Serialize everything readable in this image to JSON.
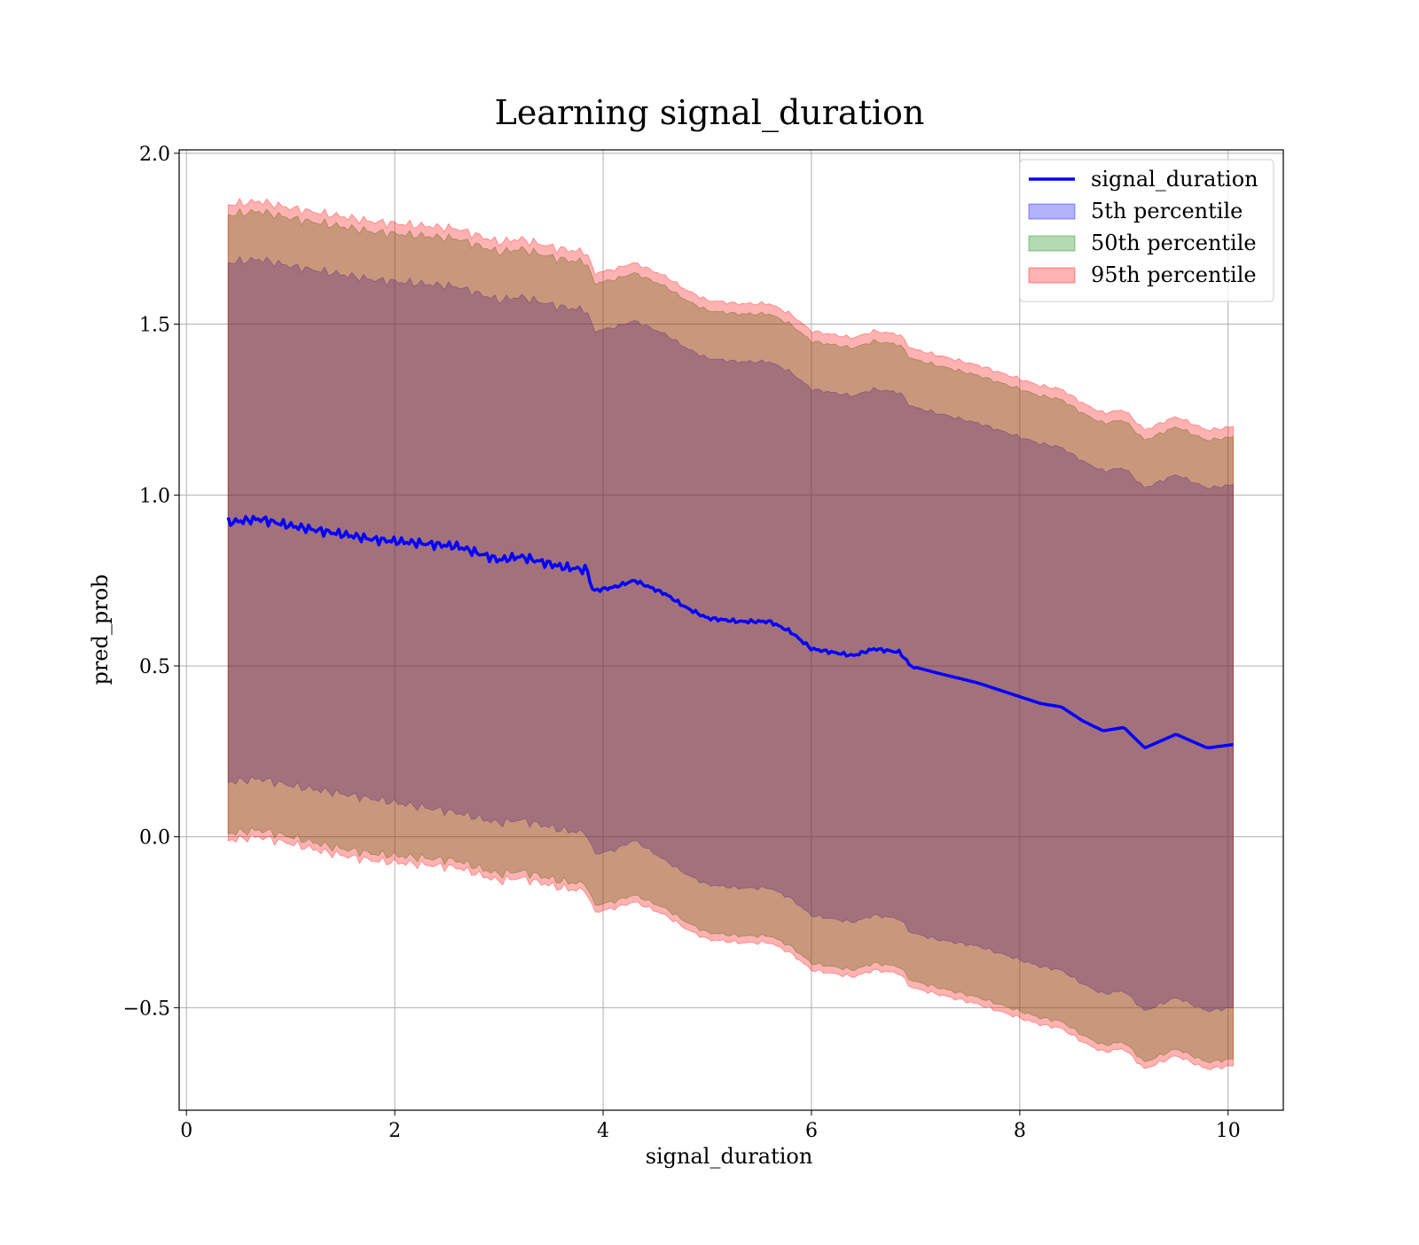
{
  "chart_data": {
    "type": "area",
    "title": "Learning signal_duration",
    "xlabel": "signal_duration",
    "ylabel": "pred_prob",
    "xlim": [
      -0.07,
      10.53
    ],
    "ylim": [
      -0.8,
      2.01
    ],
    "xticks": [
      0,
      2,
      4,
      6,
      8,
      10
    ],
    "xtick_labels": [
      "0",
      "2",
      "4",
      "6",
      "8",
      "10"
    ],
    "yticks": [
      -0.5,
      0.0,
      0.5,
      1.0,
      1.5,
      2.0
    ],
    "ytick_labels": [
      "−0.5",
      "0.0",
      "0.5",
      "1.0",
      "1.5",
      "2.0"
    ],
    "grid": true,
    "legend_position": "top-right",
    "x": [
      0.4,
      0.7,
      1.0,
      1.4,
      1.8,
      2.2,
      2.6,
      3.0,
      3.2,
      3.6,
      3.85,
      3.9,
      4.1,
      4.3,
      4.6,
      4.8,
      5.0,
      5.3,
      5.6,
      5.8,
      6.0,
      6.2,
      6.4,
      6.6,
      6.85,
      6.95,
      7.2,
      7.6,
      7.8,
      8.0,
      8.2,
      8.4,
      8.6,
      8.8,
      9.0,
      9.2,
      9.5,
      9.8,
      10.05
    ],
    "series": [
      {
        "name": "signal_duration",
        "type": "line",
        "color": "#0000ff",
        "values": [
          0.92,
          0.93,
          0.91,
          0.89,
          0.87,
          0.86,
          0.85,
          0.81,
          0.82,
          0.79,
          0.78,
          0.72,
          0.73,
          0.75,
          0.71,
          0.67,
          0.64,
          0.63,
          0.63,
          0.6,
          0.55,
          0.54,
          0.53,
          0.55,
          0.54,
          0.5,
          0.48,
          0.45,
          0.43,
          0.41,
          0.39,
          0.38,
          0.34,
          0.31,
          0.32,
          0.26,
          0.3,
          0.26,
          0.27
        ]
      },
      {
        "name": "5th percentile",
        "type": "band",
        "color": "#0000ff",
        "opacity": 0.3,
        "lower": [
          0.16,
          0.17,
          0.15,
          0.13,
          0.11,
          0.09,
          0.07,
          0.04,
          0.05,
          0.02,
          0.01,
          -0.05,
          -0.04,
          -0.01,
          -0.07,
          -0.11,
          -0.14,
          -0.15,
          -0.15,
          -0.18,
          -0.23,
          -0.24,
          -0.25,
          -0.23,
          -0.24,
          -0.28,
          -0.3,
          -0.32,
          -0.34,
          -0.36,
          -0.38,
          -0.39,
          -0.43,
          -0.46,
          -0.45,
          -0.51,
          -0.47,
          -0.51,
          -0.5
        ],
        "upper": [
          1.68,
          1.69,
          1.67,
          1.65,
          1.63,
          1.62,
          1.61,
          1.57,
          1.58,
          1.55,
          1.54,
          1.48,
          1.49,
          1.51,
          1.47,
          1.43,
          1.4,
          1.39,
          1.39,
          1.36,
          1.31,
          1.3,
          1.29,
          1.31,
          1.3,
          1.26,
          1.24,
          1.21,
          1.19,
          1.17,
          1.15,
          1.14,
          1.1,
          1.07,
          1.08,
          1.02,
          1.06,
          1.02,
          1.03
        ]
      },
      {
        "name": "50th percentile",
        "type": "band",
        "color": "#008000",
        "opacity": 0.3,
        "lower": [
          0.01,
          0.02,
          0.0,
          -0.03,
          -0.05,
          -0.06,
          -0.07,
          -0.11,
          -0.1,
          -0.13,
          -0.14,
          -0.2,
          -0.19,
          -0.17,
          -0.21,
          -0.25,
          -0.28,
          -0.29,
          -0.29,
          -0.32,
          -0.37,
          -0.38,
          -0.39,
          -0.37,
          -0.38,
          -0.42,
          -0.44,
          -0.47,
          -0.49,
          -0.51,
          -0.53,
          -0.54,
          -0.58,
          -0.61,
          -0.6,
          -0.66,
          -0.62,
          -0.66,
          -0.65
        ],
        "upper": [
          1.82,
          1.83,
          1.81,
          1.79,
          1.77,
          1.76,
          1.75,
          1.71,
          1.72,
          1.69,
          1.68,
          1.62,
          1.63,
          1.65,
          1.61,
          1.57,
          1.54,
          1.53,
          1.53,
          1.5,
          1.45,
          1.44,
          1.43,
          1.45,
          1.44,
          1.4,
          1.38,
          1.35,
          1.33,
          1.31,
          1.29,
          1.28,
          1.24,
          1.21,
          1.22,
          1.16,
          1.2,
          1.16,
          1.17
        ]
      },
      {
        "name": "95th percentile",
        "type": "band",
        "color": "#ff0000",
        "opacity": 0.3,
        "lower": [
          -0.01,
          0.0,
          -0.02,
          -0.05,
          -0.07,
          -0.08,
          -0.09,
          -0.13,
          -0.12,
          -0.15,
          -0.16,
          -0.22,
          -0.21,
          -0.19,
          -0.23,
          -0.27,
          -0.3,
          -0.31,
          -0.31,
          -0.34,
          -0.39,
          -0.4,
          -0.41,
          -0.39,
          -0.4,
          -0.44,
          -0.46,
          -0.49,
          -0.51,
          -0.53,
          -0.55,
          -0.56,
          -0.6,
          -0.63,
          -0.62,
          -0.68,
          -0.64,
          -0.68,
          -0.67
        ],
        "upper": [
          1.85,
          1.86,
          1.84,
          1.82,
          1.8,
          1.79,
          1.78,
          1.74,
          1.75,
          1.72,
          1.71,
          1.65,
          1.66,
          1.68,
          1.64,
          1.6,
          1.57,
          1.56,
          1.56,
          1.53,
          1.48,
          1.47,
          1.46,
          1.48,
          1.47,
          1.43,
          1.41,
          1.38,
          1.36,
          1.34,
          1.32,
          1.31,
          1.27,
          1.24,
          1.25,
          1.19,
          1.23,
          1.19,
          1.2
        ]
      }
    ]
  }
}
